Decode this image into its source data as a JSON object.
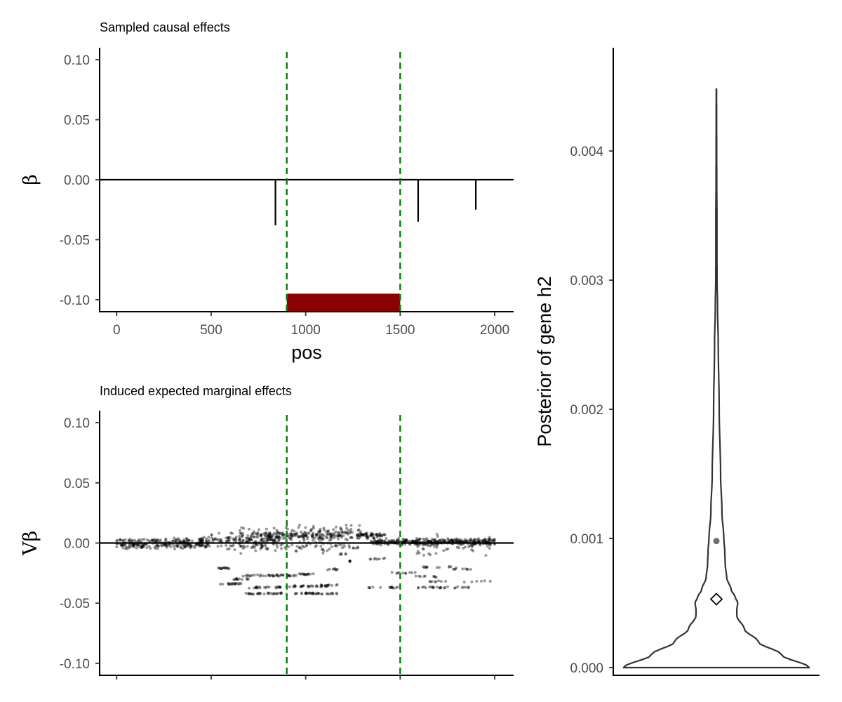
{
  "chart_data": [
    {
      "type": "line",
      "title": "Sampled causal effects",
      "xlabel": "pos",
      "ylabel": "β",
      "xlim": [
        -90,
        2100
      ],
      "ylim": [
        -0.11,
        0.11
      ],
      "x_ticks": [
        0,
        500,
        1000,
        1500,
        2000
      ],
      "x_tick_labels": [
        "0",
        "500",
        "1000",
        "1500",
        "2000"
      ],
      "y_ticks": [
        0.1,
        0.05,
        0,
        -0.05,
        -0.1
      ],
      "y_tick_labels": [
        "0.10",
        "0.05",
        "0.00",
        "-0.05",
        "-0.10"
      ],
      "hline": 0,
      "vlines": [
        900,
        1500
      ],
      "vline_color": "#008000",
      "gene_region": {
        "start": 900,
        "end": 1500,
        "ymin": -0.11,
        "ymax": -0.095,
        "color": "#8b0000"
      },
      "effects": [
        {
          "pos": 840,
          "beta": -0.038
        },
        {
          "pos": 1595,
          "beta": -0.035
        },
        {
          "pos": 1900,
          "beta": -0.025
        }
      ]
    },
    {
      "type": "scatter",
      "title": "Induced expected marginal effects",
      "xlabel": "",
      "ylabel": "Vβ",
      "xlim": [
        -90,
        2100
      ],
      "ylim": [
        -0.11,
        0.11
      ],
      "x_ticks": [
        0,
        500,
        1000,
        1500,
        2000
      ],
      "y_ticks": [
        0.1,
        0.05,
        0,
        -0.05,
        -0.1
      ],
      "y_tick_labels": [
        "0.10",
        "0.05",
        "0.00",
        "-0.05",
        "-0.10"
      ],
      "hline": 0,
      "vlines": [
        900,
        1500
      ],
      "vline_color": "#008000",
      "point_color": "#000000",
      "point_alpha": 0.4,
      "clusters": [
        {
          "x0": 0,
          "x1": 480,
          "y0": -0.006,
          "y1": 0.005,
          "n": 230
        },
        {
          "x0": 430,
          "x1": 850,
          "y0": -0.004,
          "y1": 0.009,
          "n": 140
        },
        {
          "x0": 600,
          "x1": 1300,
          "y0": 0.001,
          "y1": 0.016,
          "n": 110
        },
        {
          "x0": 780,
          "x1": 1250,
          "y0": 0.002,
          "y1": 0.01,
          "n": 120
        },
        {
          "x0": 560,
          "x1": 1240,
          "y0": -0.01,
          "y1": 0.004,
          "n": 90
        },
        {
          "x0": 1270,
          "x1": 1420,
          "y0": 0.003,
          "y1": 0.01,
          "n": 60
        },
        {
          "x0": 1340,
          "x1": 2000,
          "y0": -0.002,
          "y1": 0.004,
          "n": 330
        },
        {
          "x0": 1580,
          "x1": 1990,
          "y0": -0.012,
          "y1": 0.008,
          "n": 50
        }
      ],
      "bands": [
        {
          "x0": 520,
          "x1": 600,
          "y": -0.021,
          "n": 14
        },
        {
          "x0": 530,
          "x1": 660,
          "y": -0.034,
          "n": 18
        },
        {
          "x0": 600,
          "x1": 700,
          "y": -0.03,
          "n": 12
        },
        {
          "x0": 660,
          "x1": 960,
          "y": -0.027,
          "n": 40
        },
        {
          "x0": 700,
          "x1": 880,
          "y": -0.037,
          "n": 22
        },
        {
          "x0": 660,
          "x1": 1180,
          "y": -0.042,
          "n": 65
        },
        {
          "x0": 880,
          "x1": 1120,
          "y": -0.036,
          "n": 28
        },
        {
          "x0": 960,
          "x1": 1060,
          "y": -0.026,
          "n": 14
        },
        {
          "x0": 1080,
          "x1": 1180,
          "y": -0.035,
          "n": 12
        },
        {
          "x0": 1110,
          "x1": 1170,
          "y": -0.022,
          "n": 8
        },
        {
          "x0": 1180,
          "x1": 1215,
          "y": -0.009,
          "n": 5
        },
        {
          "x0": 1215,
          "x1": 1245,
          "y": -0.015,
          "n": 5
        },
        {
          "x0": 1250,
          "x1": 1280,
          "y": -0.004,
          "n": 5
        },
        {
          "x0": 1340,
          "x1": 1420,
          "y": -0.013,
          "n": 8
        },
        {
          "x0": 1330,
          "x1": 1500,
          "y": -0.037,
          "n": 14
        },
        {
          "x0": 1450,
          "x1": 1580,
          "y": -0.025,
          "n": 10
        },
        {
          "x0": 1560,
          "x1": 1760,
          "y": -0.037,
          "n": 18
        },
        {
          "x0": 1580,
          "x1": 1700,
          "y": -0.028,
          "n": 9
        },
        {
          "x0": 1620,
          "x1": 1820,
          "y": -0.02,
          "n": 12
        },
        {
          "x0": 1640,
          "x1": 1980,
          "y": -0.032,
          "n": 14
        },
        {
          "x0": 1780,
          "x1": 1890,
          "y": -0.037,
          "n": 8
        },
        {
          "x0": 1780,
          "x1": 1900,
          "y": -0.022,
          "n": 8
        }
      ]
    },
    {
      "type": "violin",
      "title": "",
      "ylabel": "Posterior of gene h2",
      "ylim": [
        -6e-05,
        0.0048
      ],
      "y_ticks": [
        0,
        0.001,
        0.002,
        0.003,
        0.004
      ],
      "y_tick_labels": [
        "0.000",
        "0.001",
        "0.002",
        "0.003",
        "0.004"
      ],
      "distribution_range": [
        0,
        0.00448
      ],
      "max_half_width_fraction": 0.9,
      "density_profile": [
        [
          0,
          1.0
        ],
        [
          0.0001,
          0.7
        ],
        [
          0.0002,
          0.45
        ],
        [
          0.0003,
          0.3
        ],
        [
          0.0004,
          0.22
        ],
        [
          0.00045,
          0.22
        ],
        [
          0.0005,
          0.23
        ],
        [
          0.00055,
          0.2
        ],
        [
          0.0006,
          0.16
        ],
        [
          0.0007,
          0.11
        ],
        [
          0.0008,
          0.095
        ],
        [
          0.0009,
          0.09
        ],
        [
          0.001,
          0.08
        ],
        [
          0.0012,
          0.06
        ],
        [
          0.0015,
          0.045
        ],
        [
          0.002,
          0.03
        ],
        [
          0.0025,
          0.02
        ],
        [
          0.0028,
          0.012
        ],
        [
          0.003,
          0.007
        ],
        [
          0.0032,
          0.006
        ],
        [
          0.0035,
          0.006
        ],
        [
          0.0037,
          0.004
        ],
        [
          0.004,
          0.003
        ],
        [
          0.0042,
          0.0025
        ],
        [
          0.00448,
          0.0015
        ]
      ],
      "point_estimate": 0.00098,
      "diamond_value": 0.00053
    }
  ]
}
